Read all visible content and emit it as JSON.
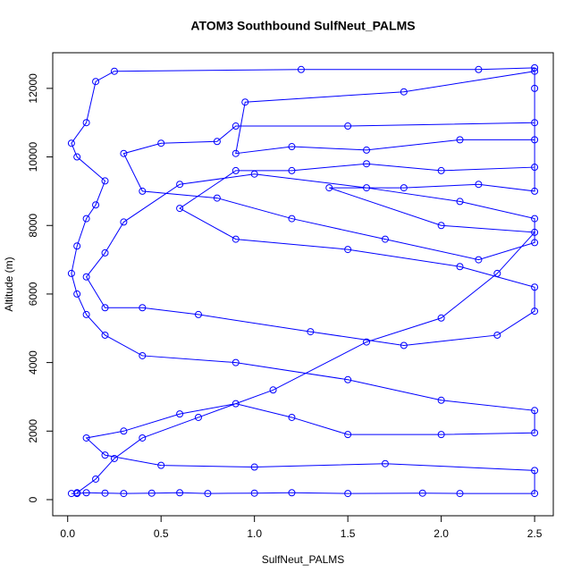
{
  "chart_data": {
    "type": "line",
    "title": "ATOM3 Southbound SulfNeut_PALMS",
    "x_label": "SulfNeut_PALMS",
    "y_label": "Altitude (m)",
    "x": [
      0.02,
      0.05,
      0.1,
      0.2,
      0.3,
      0.45,
      0.6,
      0.75,
      1.0,
      1.2,
      1.5,
      1.9,
      2.1,
      2.5,
      2.5,
      1.7,
      1.0,
      0.5,
      0.2,
      0.1,
      0.3,
      0.6,
      0.9,
      1.2,
      1.5,
      2.0,
      2.5,
      2.5,
      2.0,
      1.5,
      0.9,
      0.4,
      0.2,
      0.1,
      0.05,
      0.02,
      0.05,
      0.1,
      0.15,
      0.2,
      0.05,
      0.02,
      0.1,
      0.15,
      0.25,
      1.25,
      2.2,
      2.5,
      2.5,
      2.5,
      1.5,
      0.9,
      0.8,
      0.5,
      0.3,
      0.4,
      0.8,
      1.2,
      1.7,
      2.2,
      2.5,
      2.5,
      2.1,
      1.6,
      1.0,
      0.6,
      0.3,
      0.2,
      0.1,
      0.2,
      0.4,
      0.7,
      1.3,
      1.8,
      2.3,
      2.5,
      2.5,
      2.1,
      1.5,
      0.9,
      0.6,
      0.9,
      1.2,
      1.6,
      2.0,
      2.5,
      2.5,
      2.1,
      1.6,
      1.2,
      0.9,
      0.95,
      1.8,
      2.5,
      2.5,
      2.2,
      1.8,
      1.4,
      2.0,
      2.5,
      2.3,
      2.0,
      1.6,
      1.1,
      0.7,
      0.4,
      0.25,
      0.15,
      0.05
    ],
    "series": [
      {
        "color": "#0000ff",
        "values": [
          180,
          180,
          200,
          190,
          180,
          190,
          200,
          180,
          190,
          200,
          180,
          190,
          180,
          180,
          850,
          1050,
          950,
          1000,
          1300,
          1800,
          2000,
          2500,
          2800,
          2400,
          1900,
          1900,
          1950,
          2600,
          2900,
          3500,
          4000,
          4200,
          4800,
          5400,
          6000,
          6600,
          7400,
          8200,
          8600,
          9300,
          10000,
          10400,
          11000,
          12200,
          12500,
          12550,
          12550,
          12600,
          12000,
          11000,
          10900,
          10900,
          10450,
          10400,
          10100,
          9000,
          8800,
          8200,
          7600,
          7000,
          7500,
          8200,
          8700,
          9100,
          9500,
          9200,
          8100,
          7200,
          6500,
          5600,
          5600,
          5400,
          4900,
          4500,
          4800,
          5500,
          6200,
          6800,
          7300,
          7600,
          8500,
          9600,
          9600,
          9800,
          9600,
          9700,
          10500,
          10500,
          10200,
          10300,
          10100,
          11600,
          11900,
          12500,
          9000,
          9200,
          9100,
          9100,
          8000,
          7800,
          6600,
          5300,
          4600,
          3200,
          2400,
          1800,
          1200,
          600,
          200
        ]
      }
    ],
    "xlim": [
      -0.08,
      2.6
    ],
    "ylim": [
      -470,
      13040
    ],
    "xticks": [
      {
        "value": 0,
        "label": "0.0"
      },
      {
        "value": 0.5,
        "label": "0.5"
      },
      {
        "value": 1,
        "label": "1.0"
      },
      {
        "value": 1.5,
        "label": "1.5"
      },
      {
        "value": 2,
        "label": "2.0"
      },
      {
        "value": 2.5,
        "label": "2.5"
      }
    ],
    "yticks": [
      0,
      2000,
      4000,
      6000,
      8000,
      10000,
      12000
    ],
    "grid": false
  }
}
